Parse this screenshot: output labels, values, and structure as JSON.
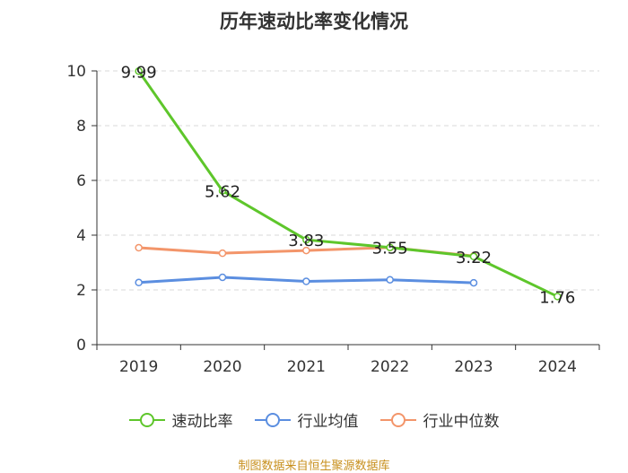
{
  "chart_data": {
    "type": "line",
    "title": "历年速动比率变化情况",
    "categories": [
      "2019",
      "2020",
      "2021",
      "2022",
      "2023",
      "2024"
    ],
    "ylim": [
      0,
      10
    ],
    "yticks": [
      0,
      2,
      4,
      6,
      8,
      10
    ],
    "grid": true,
    "legend_position": "bottom",
    "series": [
      {
        "name": "速动比率",
        "color": "#5ec62b",
        "values": [
          9.99,
          5.62,
          3.83,
          3.55,
          3.22,
          1.76
        ],
        "labels": [
          "9.99",
          "5.62",
          "3.83",
          "3.55",
          "3.22",
          "1.76"
        ]
      },
      {
        "name": "行业均值",
        "color": "#5b8ee0",
        "values": [
          2.27,
          2.46,
          2.31,
          2.37,
          2.26,
          null
        ]
      },
      {
        "name": "行业中位数",
        "color": "#f3956a",
        "values": [
          3.54,
          3.34,
          3.44,
          3.55,
          3.24,
          null
        ]
      }
    ],
    "source": "制图数据来自恒生聚源数据库"
  }
}
